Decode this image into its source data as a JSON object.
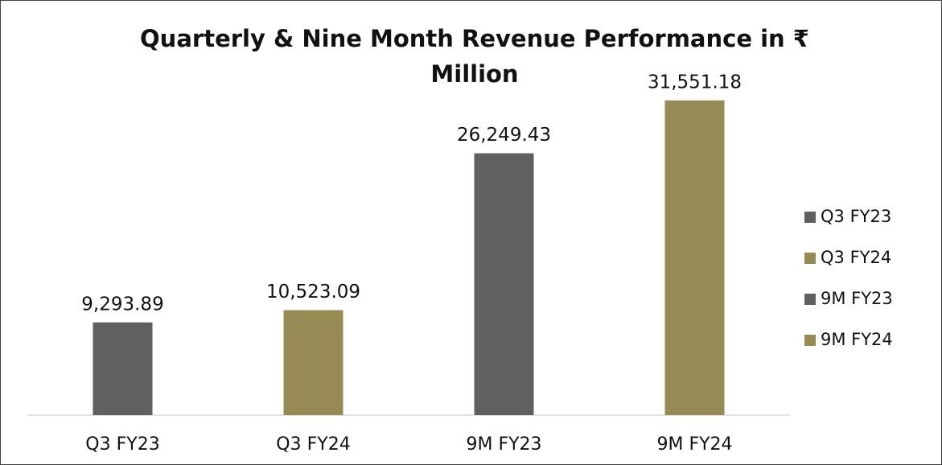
{
  "chart_data": {
    "type": "bar",
    "title": "Quarterly & Nine Month Revenue Performance in ₹ Million",
    "categories": [
      "Q3 FY23",
      "Q3 FY24",
      "9M FY23",
      "9M FY24"
    ],
    "values": [
      9293.89,
      10523.09,
      26249.43,
      31551.18
    ],
    "value_labels": [
      "9,293.89",
      "10,523.09",
      "26,249.43",
      "31,551.18"
    ],
    "colors": [
      "#606060",
      "#968b55",
      "#606060",
      "#968b55"
    ],
    "ylim": [
      0,
      35000
    ],
    "legend": true,
    "legend_position": "right"
  }
}
